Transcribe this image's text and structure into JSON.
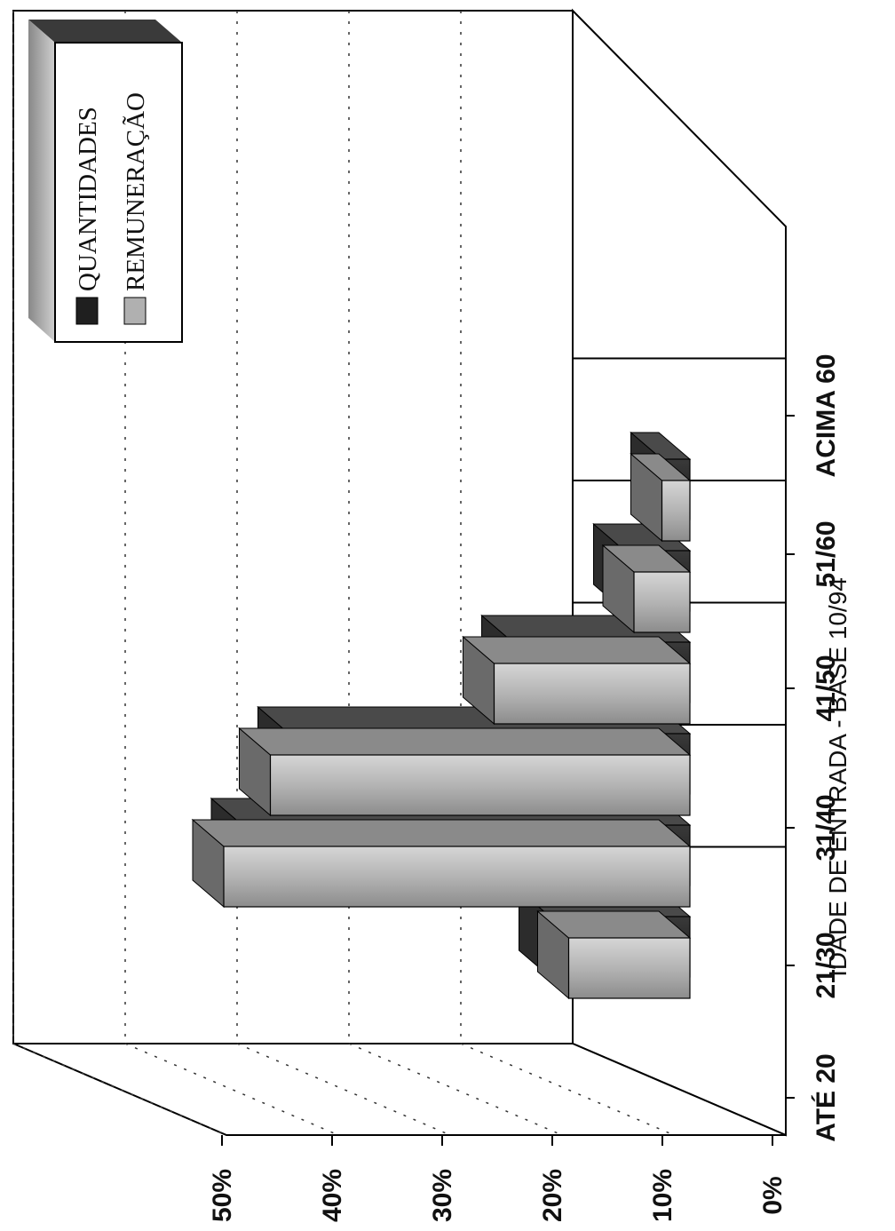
{
  "chart_data": {
    "type": "bar",
    "title": "",
    "xlabel": "IDADE DE ENTRADA - BASE 10/94",
    "ylabel": "",
    "ylim": [
      0,
      50
    ],
    "yticks": [
      0,
      10,
      20,
      30,
      40,
      50
    ],
    "ytick_labels": [
      "0%",
      "10%",
      "20%",
      "30%",
      "40%",
      "50%"
    ],
    "categories": [
      "ATÉ 20",
      "21/30",
      "31/40",
      "41/50",
      "51/60",
      "ACIMA 60"
    ],
    "series": [
      {
        "name": "QUANTIDADES",
        "values": [
          15,
          48,
          43,
          19,
          7,
          3
        ],
        "color": "#1f1f1f"
      },
      {
        "name": "REMUNERAÇÃO",
        "values": [
          13,
          50,
          45,
          21,
          6,
          3
        ],
        "color": "#a8a8a8"
      }
    ],
    "grid": true,
    "legend_position": "top-right",
    "orientation": "rotated-3d"
  }
}
